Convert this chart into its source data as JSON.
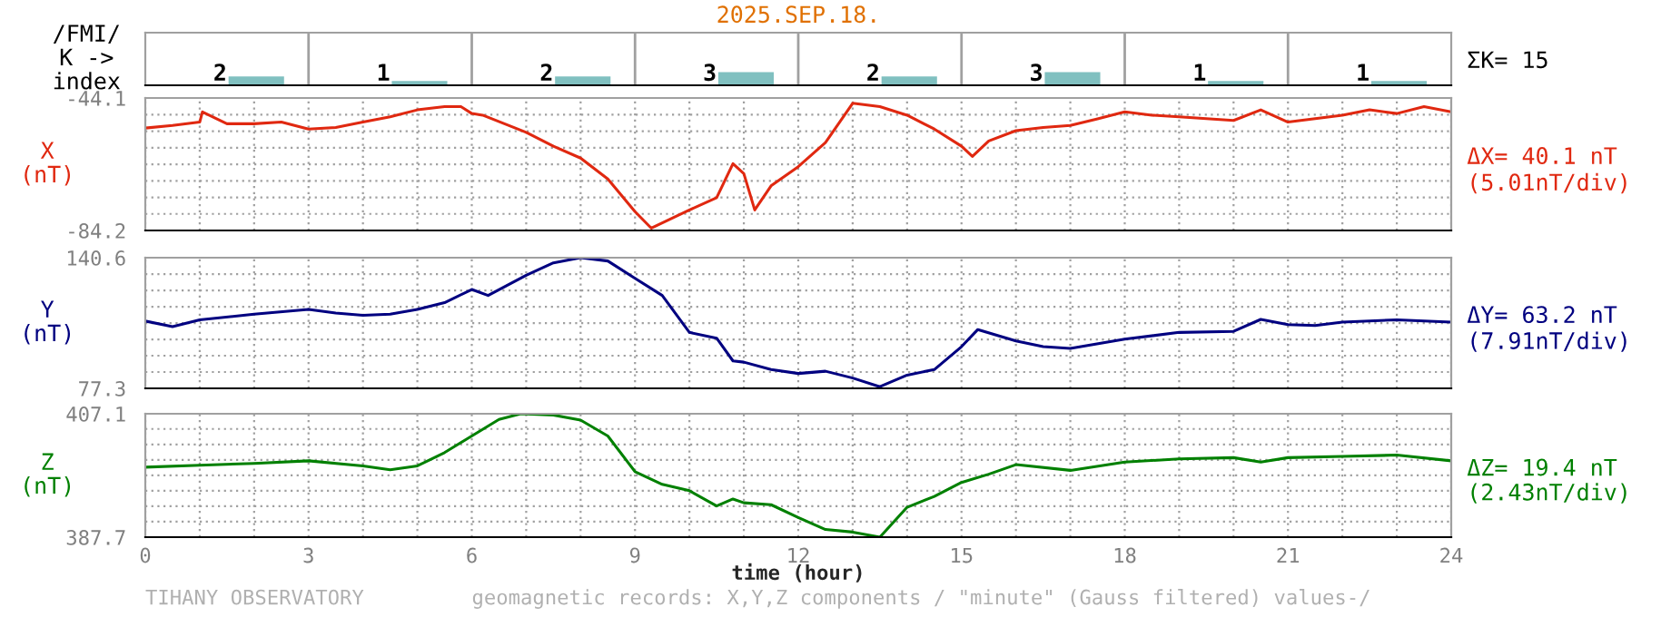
{
  "chart_data": [
    {
      "type": "bar",
      "title": "2025.SEP.18.",
      "ylabel": "/FMI/\nK ->\nindex",
      "categories": [
        null,
        null,
        null,
        null,
        null,
        null,
        null,
        null
      ],
      "values": [
        2,
        1,
        2,
        3,
        2,
        3,
        1,
        1
      ],
      "colors": [
        "#80c0c0",
        "#80c0c0",
        "#80c0c0",
        "#80c0c0",
        "#80c0c0",
        "#80c0c0",
        "#80c0c0",
        "#80c0c0"
      ],
      "data_labels": true,
      "tick_labels": false,
      "annotations": [
        "ΣK= 15"
      ]
    },
    {
      "type": "line",
      "ylabel": "X\n(nT)",
      "xlim": [
        0,
        24
      ],
      "ylim": [
        -84.2,
        -44.1
      ],
      "yticks": [
        -84.2,
        {
          "value": -79.19,
          "label": null
        },
        {
          "value": -74.18,
          "label": null
        },
        {
          "value": -69.17,
          "label": null
        },
        {
          "value": -64.16,
          "label": null
        },
        {
          "value": -59.15,
          "label": null
        },
        {
          "value": -54.14,
          "label": null
        },
        {
          "value": -49.13,
          "label": null
        },
        -44.1
      ],
      "xticks": [
        0,
        {
          "value": 1,
          "label": null
        },
        {
          "value": 2,
          "label": null
        },
        3,
        {
          "value": 4,
          "label": null
        },
        {
          "value": 5,
          "label": null
        },
        6,
        {
          "value": 7,
          "label": null
        },
        {
          "value": 8,
          "label": null
        },
        9,
        {
          "value": 10,
          "label": null
        },
        {
          "value": 11,
          "label": null
        },
        12,
        {
          "value": 13,
          "label": null
        },
        {
          "value": 14,
          "label": null
        },
        15,
        {
          "value": 16,
          "label": null
        },
        {
          "value": 17,
          "label": null
        },
        18,
        {
          "value": 19,
          "label": null
        },
        {
          "value": 20,
          "label": null
        },
        21,
        {
          "value": 22,
          "label": null
        },
        {
          "value": 23,
          "label": null
        },
        24
      ],
      "grid": true,
      "tick_labels": "y",
      "annotations": [
        "ΔX= 40.1 nT",
        "(5.01nT/div)"
      ],
      "series": [
        {
          "color": "#e02810",
          "x": [
            0,
            0.5,
            1,
            1.05,
            1.5,
            2,
            2.5,
            3,
            3.5,
            4,
            4.5,
            5,
            5.5,
            5.8,
            6,
            6.2,
            7,
            7.5,
            8,
            8.5,
            9,
            9.3,
            10,
            10.5,
            10.8,
            11,
            11.2,
            11.5,
            12,
            12.5,
            13,
            13.5,
            14,
            14.5,
            15,
            15.2,
            15.5,
            16,
            16.5,
            17,
            17.5,
            18,
            18.5,
            19,
            20,
            20.5,
            21,
            22,
            22.5,
            23,
            23.5,
            24
          ],
          "values": [
            -53.2,
            -52.4,
            -51.4,
            -48.3,
            -51.9,
            -51.9,
            -51.4,
            -53.5,
            -53.0,
            -51.4,
            -49.8,
            -47.7,
            -46.7,
            -46.7,
            -48.8,
            -49.3,
            -54.5,
            -58.7,
            -62.3,
            -68.6,
            -78.5,
            -83.5,
            -78.0,
            -74.3,
            -64.0,
            -67.0,
            -78.0,
            -70.7,
            -64.9,
            -57.6,
            -45.7,
            -46.7,
            -49.3,
            -53.5,
            -58.7,
            -61.8,
            -57.1,
            -54.0,
            -53.0,
            -52.4,
            -50.4,
            -48.3,
            -49.3,
            -49.8,
            -50.9,
            -47.7,
            -51.4,
            -49.3,
            -47.7,
            -48.8,
            -46.7,
            -48.3
          ]
        }
      ]
    },
    {
      "type": "line",
      "ylabel": "Y\n(nT)",
      "xlim": [
        0,
        24
      ],
      "ylim": [
        77.3,
        140.6
      ],
      "yticks": [
        77.3,
        {
          "value": 85.21,
          "label": null
        },
        {
          "value": 93.12,
          "label": null
        },
        {
          "value": 101.03,
          "label": null
        },
        {
          "value": 108.94,
          "label": null
        },
        {
          "value": 116.85,
          "label": null
        },
        {
          "value": 124.76,
          "label": null
        },
        {
          "value": 132.67,
          "label": null
        },
        140.6
      ],
      "xticks": [
        0,
        {
          "value": 1,
          "label": null
        },
        {
          "value": 2,
          "label": null
        },
        3,
        {
          "value": 4,
          "label": null
        },
        {
          "value": 5,
          "label": null
        },
        6,
        {
          "value": 7,
          "label": null
        },
        {
          "value": 8,
          "label": null
        },
        9,
        {
          "value": 10,
          "label": null
        },
        {
          "value": 11,
          "label": null
        },
        12,
        {
          "value": 13,
          "label": null
        },
        {
          "value": 14,
          "label": null
        },
        15,
        {
          "value": 16,
          "label": null
        },
        {
          "value": 17,
          "label": null
        },
        18,
        {
          "value": 19,
          "label": null
        },
        {
          "value": 20,
          "label": null
        },
        21,
        {
          "value": 22,
          "label": null
        },
        {
          "value": 23,
          "label": null
        },
        24
      ],
      "grid": true,
      "tick_labels": "y",
      "annotations": [
        "ΔY= 63.2 nT",
        "(7.91nT/div)"
      ],
      "series": [
        {
          "color": "#000080",
          "x": [
            0,
            0.5,
            1,
            2,
            3,
            3.5,
            4,
            4.5,
            5,
            5.5,
            6,
            6.3,
            7,
            7.5,
            8,
            8.5,
            9,
            9.5,
            10,
            10.5,
            10.8,
            11,
            11.5,
            12,
            12.5,
            13,
            13.5,
            14,
            14.5,
            15,
            15.3,
            16,
            16.5,
            17,
            18,
            19,
            20,
            20.5,
            21,
            21.5,
            22,
            23,
            24
          ],
          "values": [
            109.9,
            107.2,
            110.5,
            113.2,
            115.5,
            113.8,
            112.7,
            113.2,
            115.5,
            118.8,
            125.2,
            122.3,
            132.1,
            138.1,
            140.6,
            139.0,
            130.6,
            122.3,
            104.4,
            101.6,
            90.6,
            90.0,
            86.4,
            84.5,
            85.6,
            82.3,
            78.1,
            83.7,
            86.4,
            97.5,
            105.8,
            100.3,
            97.5,
            96.6,
            101.1,
            104.4,
            104.9,
            110.7,
            108.2,
            107.7,
            109.4,
            110.5,
            109.4
          ]
        }
      ]
    },
    {
      "type": "line",
      "ylabel": "Z\n(nT)",
      "xlabel": "time (hour)",
      "xlim": [
        0,
        24
      ],
      "ylim": [
        387.7,
        407.1
      ],
      "yticks": [
        387.7,
        {
          "value": 390.13,
          "label": null
        },
        {
          "value": 392.56,
          "label": null
        },
        {
          "value": 394.99,
          "label": null
        },
        {
          "value": 397.42,
          "label": null
        },
        {
          "value": 399.85,
          "label": null
        },
        {
          "value": 402.28,
          "label": null
        },
        {
          "value": 404.71,
          "label": null
        },
        407.1
      ],
      "xticks": [
        0,
        {
          "value": 1,
          "label": null
        },
        {
          "value": 2,
          "label": null
        },
        3,
        {
          "value": 4,
          "label": null
        },
        {
          "value": 5,
          "label": null
        },
        6,
        {
          "value": 7,
          "label": null
        },
        {
          "value": 8,
          "label": null
        },
        9,
        {
          "value": 10,
          "label": null
        },
        {
          "value": 11,
          "label": null
        },
        12,
        {
          "value": 13,
          "label": null
        },
        {
          "value": 14,
          "label": null
        },
        15,
        {
          "value": 16,
          "label": null
        },
        {
          "value": 17,
          "label": null
        },
        18,
        {
          "value": 19,
          "label": null
        },
        {
          "value": 20,
          "label": null
        },
        21,
        {
          "value": 22,
          "label": null
        },
        {
          "value": 23,
          "label": null
        },
        24
      ],
      "grid": true,
      "annotations": [
        "ΔZ= 19.4 nT",
        "(2.43nT/div)",
        "TIHANY OBSERVATORY",
        "geomagnetic records: X,Y,Z components / \"minute\" (Gauss filtered) values-/"
      ],
      "series": [
        {
          "color": "#008000",
          "x": [
            0,
            1,
            2,
            3,
            4,
            4.5,
            5,
            5.5,
            6,
            6.5,
            6.9,
            7.5,
            8,
            8.5,
            9,
            9.5,
            10,
            10.5,
            10.8,
            11,
            11.5,
            12,
            12.5,
            13,
            13.5,
            14,
            14.5,
            15,
            15.5,
            16,
            17,
            18,
            19,
            20,
            20.5,
            21,
            22,
            23,
            24
          ],
          "values": [
            398.7,
            399.0,
            399.3,
            399.7,
            398.9,
            398.3,
            398.9,
            401.0,
            403.6,
            406.2,
            407.1,
            406.9,
            406.1,
            403.6,
            398.0,
            396.0,
            395.0,
            392.6,
            393.7,
            393.1,
            392.8,
            390.8,
            388.9,
            388.5,
            387.7,
            392.4,
            394.1,
            396.3,
            397.6,
            399.1,
            398.2,
            399.5,
            400.0,
            400.2,
            399.5,
            400.2,
            400.4,
            400.6,
            399.7
          ]
        }
      ]
    }
  ]
}
